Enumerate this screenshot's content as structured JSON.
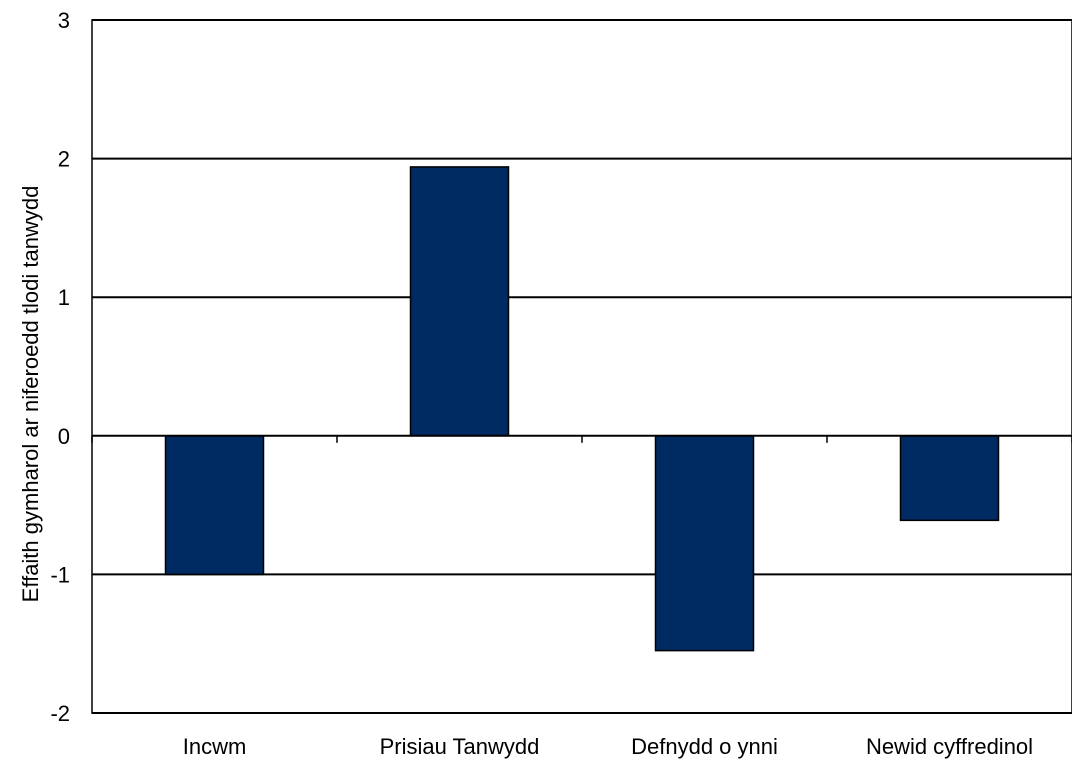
{
  "chart_data": {
    "type": "bar",
    "title": "",
    "xlabel": "",
    "ylabel": "Effaith gymharol ar niferoedd tlodi tanwydd",
    "categories": [
      "Incwm",
      "Prisiau Tanwydd",
      "Defnydd o ynni",
      "Newid cyffredinol"
    ],
    "values": [
      -1.0,
      1.94,
      -1.55,
      -0.61
    ],
    "ylim": [
      -2,
      3
    ],
    "yticks": [
      3,
      2,
      1,
      0,
      -1,
      -2
    ],
    "ytick_labels": [
      "3",
      "2",
      "1",
      "0",
      "-1",
      "-2"
    ],
    "grid": true,
    "legend": "none",
    "bar_color": "#002a62"
  }
}
